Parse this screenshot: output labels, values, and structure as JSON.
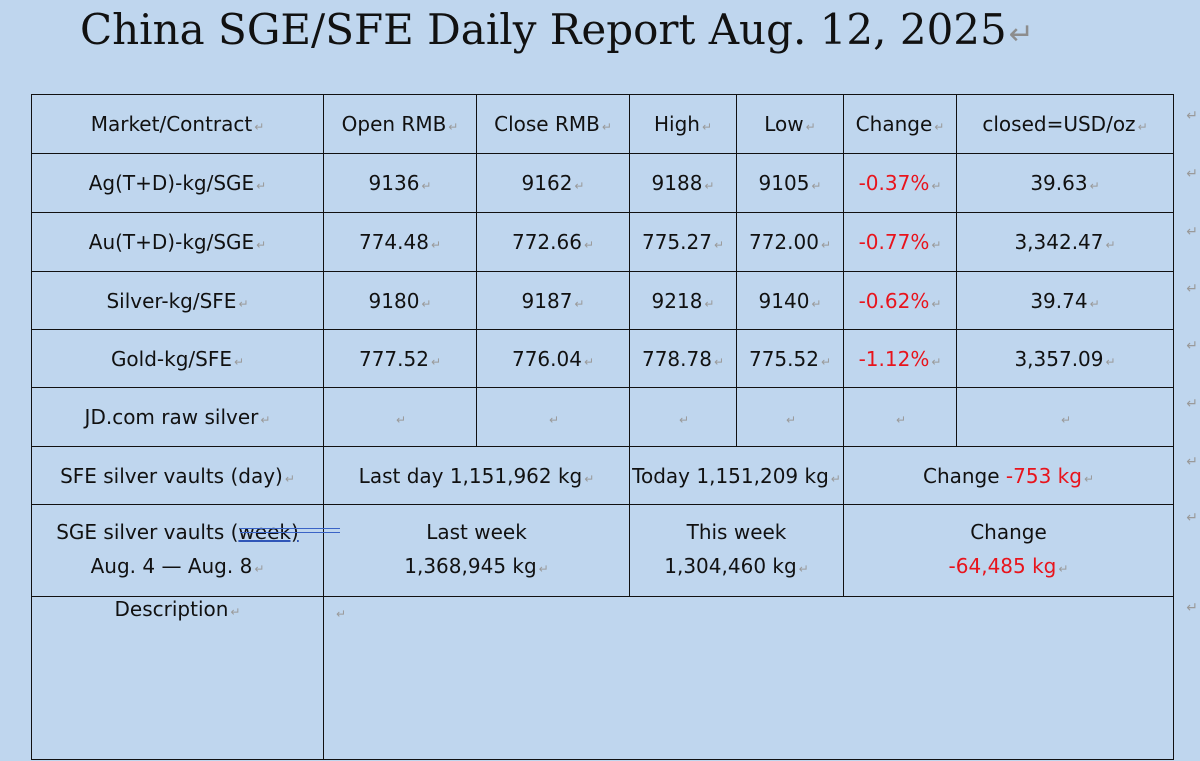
{
  "title": "China SGE/SFE Daily Report Aug. 12, 2025",
  "paragraph_mark": "↵",
  "headers": [
    "Market/Contract",
    "Open RMB",
    "Close RMB",
    "High",
    "Low",
    "Change",
    "closed=USD/oz"
  ],
  "price_rows": [
    {
      "market": "Ag(T+D)-kg/SGE",
      "open": "9136",
      "close": "9162",
      "high": "9188",
      "low": "9105",
      "change": "-0.37%",
      "usd": "39.63"
    },
    {
      "market": "Au(T+D)-kg/SGE",
      "open": "774.48",
      "close": "772.66",
      "high": "775.27",
      "low": "772.00",
      "change": "-0.77%",
      "usd": "3,342.47"
    },
    {
      "market": "Silver-kg/SFE",
      "open": "9180",
      "close": "9187",
      "high": "9218",
      "low": "9140",
      "change": "-0.62%",
      "usd": "39.74"
    },
    {
      "market": "Gold-kg/SFE",
      "open": "777.52",
      "close": "776.04",
      "high": "778.78",
      "low": "775.52",
      "change": "-1.12%",
      "usd": "3,357.09"
    },
    {
      "market": "JD.com raw silver",
      "open": "",
      "close": "",
      "high": "",
      "low": "",
      "change": "",
      "usd": ""
    }
  ],
  "sfe_vaults": {
    "label": "SFE silver vaults (day)",
    "last_day": "Last day 1,151,962 kg",
    "today": "Today 1,151,209 kg",
    "change_label": "Change ",
    "change_value": "-753 kg"
  },
  "sge_vaults": {
    "label_prefix": "SGE silver vaults (",
    "label_link": "week)",
    "date_range": "Aug. 4 — Aug. 8",
    "last_week_label": "Last week",
    "last_week_value": "1,368,945 kg",
    "this_week_label": "This week",
    "this_week_value": "1,304,460 kg",
    "change_label": "Change",
    "change_value": "-64,485 kg"
  },
  "description": {
    "label": "Description",
    "body": ""
  },
  "colors": {
    "background": "#bfd6ee",
    "negative": "#e8141c",
    "border": "#111111"
  }
}
